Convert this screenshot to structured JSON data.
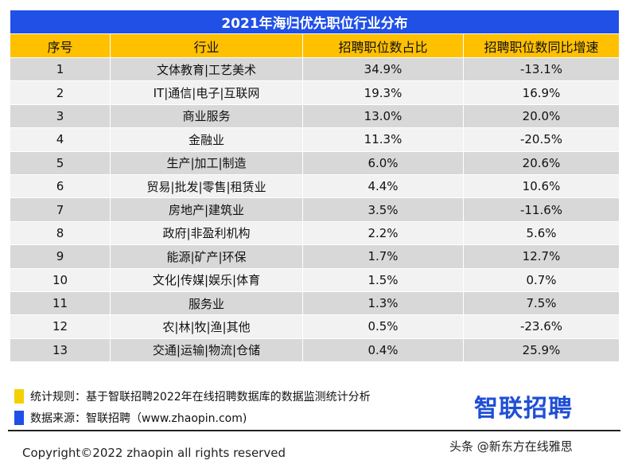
{
  "table": {
    "title": "2021年海归优先职位行业分布",
    "headers": [
      "序号",
      "行业",
      "招聘职位数占比",
      "招聘职位数同比增速"
    ],
    "rows": [
      [
        "1",
        "文体教育|工艺美术",
        "34.9%",
        "-13.1%"
      ],
      [
        "2",
        "IT|通信|电子|互联网",
        "19.3%",
        "16.9%"
      ],
      [
        "3",
        "商业服务",
        "13.0%",
        "20.0%"
      ],
      [
        "4",
        "金融业",
        "11.3%",
        "-20.5%"
      ],
      [
        "5",
        "生产|加工|制造",
        "6.0%",
        "20.6%"
      ],
      [
        "6",
        "贸易|批发|零售|租赁业",
        "4.4%",
        "10.6%"
      ],
      [
        "7",
        "房地产|建筑业",
        "3.5%",
        "-11.6%"
      ],
      [
        "8",
        "政府|非盈利机构",
        "2.2%",
        "5.6%"
      ],
      [
        "9",
        "能源|矿产|环保",
        "1.7%",
        "12.7%"
      ],
      [
        "10",
        "文化|传媒|娱乐|体育",
        "1.5%",
        "0.7%"
      ],
      [
        "11",
        "服务业",
        "1.3%",
        "7.5%"
      ],
      [
        "12",
        "农|林|牧|渔|其他",
        "0.5%",
        "-23.6%"
      ],
      [
        "13",
        "交通|运输|物流|仓储",
        "0.4%",
        "25.9%"
      ]
    ]
  },
  "notes": {
    "rule": "统计规则：基于智联招聘2022年在线招聘数据库的数据监测统计分析",
    "source": "数据来源：智联招聘（www.zhaopin.com)",
    "rule_color": "#f5d000",
    "source_color": "#1f4fe6"
  },
  "logo": "智联招聘",
  "copyright": "Copyright©2022 zhaopin all rights reserved",
  "watermark": "头条 @新东方在线雅思"
}
